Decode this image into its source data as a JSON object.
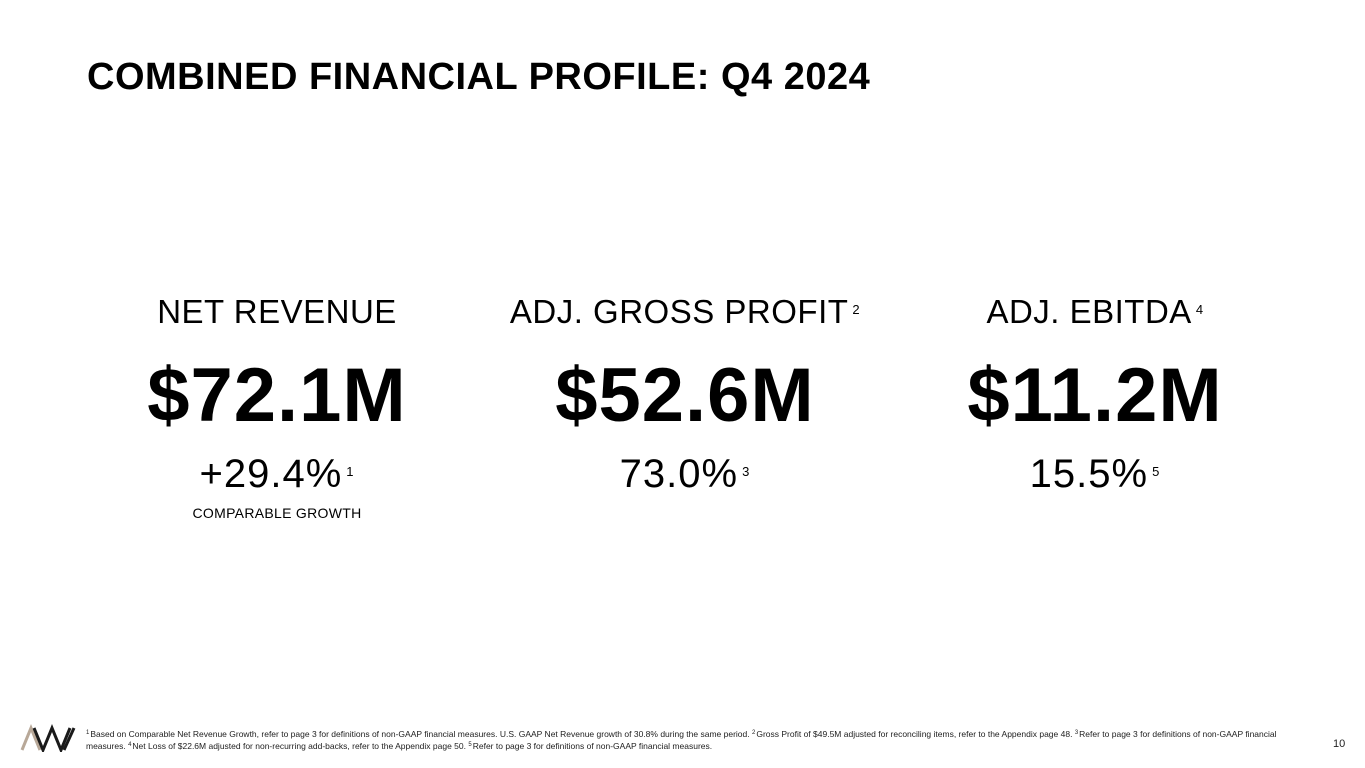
{
  "title": "COMBINED FINANCIAL PROFILE: Q4 2024",
  "metrics": [
    {
      "label": "NET REVENUE",
      "label_sup": "",
      "value": "$72.1M",
      "sub": "+29.4%",
      "sub_sup": "1",
      "note": "COMPARABLE GROWTH"
    },
    {
      "label": "ADJ. GROSS PROFIT",
      "label_sup": "2",
      "value": "$52.6M",
      "sub": "73.0%",
      "sub_sup": "3",
      "note": ""
    },
    {
      "label": "ADJ. EBITDA",
      "label_sup": "4",
      "value": "$11.2M",
      "sub": "15.5%",
      "sub_sup": "5",
      "note": ""
    }
  ],
  "footnotes": {
    "n1_marker": "1",
    "n1_text": "Based on Comparable Net Revenue Growth, refer to page 3 for definitions of non-GAAP financial measures. U.S. GAAP Net Revenue growth of 30.8% during the same period.",
    "n2_marker": "2",
    "n2_text": "Gross Profit of $49.5M adjusted for reconciling items, refer to the Appendix page 48.",
    "n3_marker": "3",
    "n3_text": "Refer to page 3 for definitions of non-GAAP financial measures.",
    "n4_marker": "4",
    "n4_text": "Net Loss of $22.6M adjusted for non-recurring add-backs, refer to the Appendix page 50.",
    "n5_marker": "5",
    "n5_text": "Refer to page 3 for definitions of non-GAAP financial measures."
  },
  "logo": {
    "icon": "company-logo-icon",
    "colors": [
      "#b8a898",
      "#1a1a1a"
    ]
  },
  "page_number": "10"
}
